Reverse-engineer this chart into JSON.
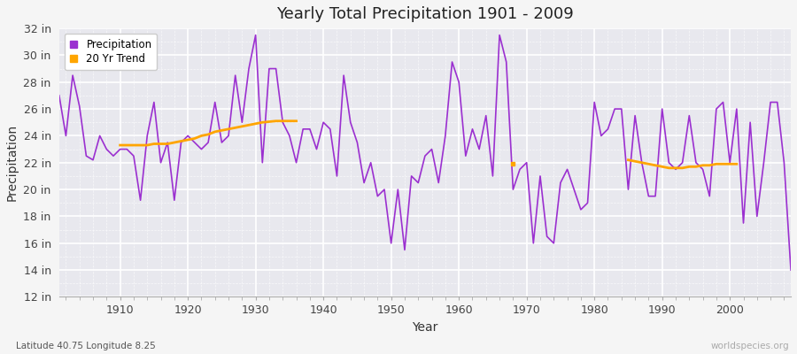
{
  "title": "Yearly Total Precipitation 1901 - 2009",
  "xlabel": "Year",
  "ylabel": "Precipitation",
  "bottom_left": "Latitude 40.75 Longitude 8.25",
  "bottom_right": "worldspecies.org",
  "ylim": [
    12,
    32
  ],
  "yticks": [
    12,
    14,
    16,
    18,
    20,
    22,
    24,
    26,
    28,
    30,
    32
  ],
  "ytick_labels": [
    "12 in",
    "14 in",
    "16 in",
    "18 in",
    "20 in",
    "22 in",
    "24 in",
    "26 in",
    "28 in",
    "30 in",
    "32 in"
  ],
  "xlim": [
    1901,
    2009
  ],
  "xticks": [
    1910,
    1920,
    1930,
    1940,
    1950,
    1960,
    1970,
    1980,
    1990,
    2000
  ],
  "precip_color": "#9b30d0",
  "trend_color": "#FFA500",
  "bg_color": "#f5f5f5",
  "plot_bg_color": "#e8e8ee",
  "grid_color": "#ffffff",
  "minor_grid_color": "#d8d8e0",
  "years": [
    1901,
    1902,
    1903,
    1904,
    1905,
    1906,
    1907,
    1908,
    1909,
    1910,
    1911,
    1912,
    1913,
    1914,
    1915,
    1916,
    1917,
    1918,
    1919,
    1920,
    1921,
    1922,
    1923,
    1924,
    1925,
    1926,
    1927,
    1928,
    1929,
    1930,
    1931,
    1932,
    1933,
    1934,
    1935,
    1936,
    1937,
    1938,
    1939,
    1940,
    1941,
    1942,
    1943,
    1944,
    1945,
    1946,
    1947,
    1948,
    1949,
    1950,
    1951,
    1952,
    1953,
    1954,
    1955,
    1956,
    1957,
    1958,
    1959,
    1960,
    1961,
    1962,
    1963,
    1964,
    1965,
    1966,
    1967,
    1968,
    1969,
    1970,
    1971,
    1972,
    1973,
    1974,
    1975,
    1976,
    1977,
    1978,
    1979,
    1980,
    1981,
    1982,
    1983,
    1984,
    1985,
    1986,
    1987,
    1988,
    1989,
    1990,
    1991,
    1992,
    1993,
    1994,
    1995,
    1996,
    1997,
    1998,
    1999,
    2000,
    2001,
    2002,
    2003,
    2004,
    2005,
    2006,
    2007,
    2008,
    2009
  ],
  "precip": [
    27.0,
    24.0,
    28.5,
    26.2,
    22.5,
    22.2,
    24.0,
    23.0,
    22.5,
    23.0,
    23.0,
    22.5,
    19.2,
    24.0,
    26.5,
    22.0,
    23.5,
    19.2,
    23.5,
    24.0,
    23.5,
    23.0,
    23.5,
    26.5,
    23.5,
    24.0,
    28.5,
    25.0,
    29.0,
    31.5,
    22.0,
    29.0,
    29.0,
    25.0,
    24.0,
    22.0,
    24.5,
    24.5,
    23.0,
    25.0,
    24.5,
    21.0,
    28.5,
    25.0,
    23.5,
    20.5,
    22.0,
    19.5,
    20.0,
    16.0,
    20.0,
    15.5,
    21.0,
    20.5,
    22.5,
    23.0,
    20.5,
    24.0,
    29.5,
    28.0,
    22.5,
    24.5,
    23.0,
    25.5,
    21.0,
    31.5,
    29.5,
    20.0,
    21.5,
    22.0,
    16.0,
    21.0,
    16.5,
    16.0,
    20.5,
    21.5,
    20.0,
    18.5,
    19.0,
    26.5,
    24.0,
    24.5,
    26.0,
    26.0,
    20.0,
    25.5,
    22.0,
    19.5,
    19.5,
    26.0,
    22.0,
    21.5,
    22.0,
    25.5,
    22.0,
    21.5,
    19.5,
    26.0,
    26.5,
    22.0,
    26.0,
    17.5,
    25.0,
    18.0,
    22.0,
    26.5,
    26.5,
    22.0,
    14.0
  ],
  "trend_seg1_years": [
    1910,
    1911,
    1912,
    1913,
    1914,
    1915,
    1916,
    1917,
    1918,
    1919,
    1920,
    1921,
    1922,
    1923,
    1924,
    1925,
    1926,
    1927,
    1928,
    1929,
    1930,
    1931,
    1932,
    1933,
    1934,
    1935,
    1936
  ],
  "trend_seg1_values": [
    23.3,
    23.3,
    23.3,
    23.3,
    23.3,
    23.4,
    23.4,
    23.4,
    23.5,
    23.6,
    23.7,
    23.8,
    24.0,
    24.1,
    24.3,
    24.4,
    24.5,
    24.6,
    24.7,
    24.8,
    24.9,
    25.0,
    25.05,
    25.1,
    25.1,
    25.1,
    25.1
  ],
  "trend_seg2_years": [
    1968
  ],
  "trend_seg2_values": [
    21.9
  ],
  "trend_seg3_years": [
    1985,
    1986,
    1987,
    1988,
    1989,
    1990,
    1991,
    1992,
    1993,
    1994,
    1995,
    1996,
    1997,
    1998,
    1999,
    2000,
    2001
  ],
  "trend_seg3_values": [
    22.2,
    22.1,
    22.0,
    21.9,
    21.8,
    21.7,
    21.6,
    21.6,
    21.6,
    21.7,
    21.7,
    21.8,
    21.8,
    21.9,
    21.9,
    21.9,
    21.9
  ]
}
